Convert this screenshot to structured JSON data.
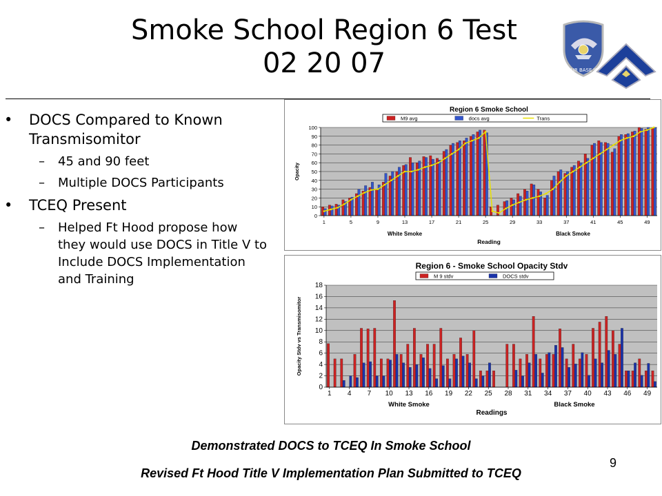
{
  "slide": {
    "title_line1": "Smoke School Region 6 Test",
    "title_line2": "02 20 07",
    "page_number": "9",
    "footer_line1": "Demonstrated DOCS to TCEQ In Smoke School",
    "footer_line2": "Revised Ft Hood Title V Implementation Plan Submitted to TCEQ",
    "logo_text": "75th AIR BASE WING"
  },
  "bullets": [
    {
      "level": 1,
      "marker": "•",
      "text_lines": [
        "DOCS Compared to Known",
        "Transmisomitor"
      ]
    },
    {
      "level": 2,
      "marker": "–",
      "text_lines": [
        "45 and 90 feet"
      ]
    },
    {
      "level": 2,
      "marker": "–",
      "text_lines": [
        "Multiple DOCS Participants"
      ]
    },
    {
      "level": 1,
      "marker": "•",
      "text_lines": [
        "TCEQ Present"
      ]
    },
    {
      "level": 2,
      "marker": "–",
      "text_lines": [
        "Helped Ft Hood propose how",
        "they would use DOCS in Title V to",
        "Include DOCS Implementation",
        "and Training"
      ]
    }
  ],
  "chart_data": [
    {
      "type": "bar",
      "title": "Region 6 Smoke School",
      "xlabel": "Reading",
      "ylabel": "Opacity",
      "group_labels": [
        "White Smoke",
        "Black Smoke"
      ],
      "ylim": [
        0,
        100
      ],
      "yticks": [
        0,
        10,
        20,
        30,
        40,
        50,
        60,
        70,
        80,
        90,
        100
      ],
      "xtick_labels": [
        "1",
        "5",
        "9",
        "13",
        "17",
        "21",
        "25",
        "29",
        "33",
        "37",
        "41",
        "45",
        "49"
      ],
      "grid": true,
      "legend_position": "top",
      "series": [
        {
          "name": "M9 avg",
          "kind": "bar",
          "color": "#cc2222",
          "values": [
            10,
            12,
            13,
            18,
            20,
            25,
            28,
            32,
            30,
            38,
            45,
            50,
            57,
            66,
            60,
            67,
            68,
            65,
            73,
            80,
            83,
            85,
            90,
            95,
            97,
            10,
            12,
            16,
            20,
            25,
            30,
            36,
            30,
            20,
            40,
            50,
            48,
            55,
            62,
            70,
            80,
            85,
            83,
            72,
            90,
            92,
            95,
            100,
            98,
            99
          ]
        },
        {
          "name": "docs avg",
          "kind": "bar",
          "color": "#3355cc",
          "values": [
            8,
            11,
            12,
            16,
            21,
            30,
            34,
            38,
            35,
            48,
            50,
            55,
            58,
            60,
            62,
            66,
            64,
            63,
            75,
            82,
            85,
            88,
            92,
            97,
            94,
            0,
            0,
            17,
            18,
            22,
            28,
            35,
            27,
            23,
            45,
            52,
            50,
            57,
            60,
            65,
            82,
            83,
            82,
            76,
            92,
            93,
            96,
            99,
            100,
            100
          ]
        },
        {
          "name": "Trans",
          "kind": "line",
          "color": "#e8e000",
          "values": [
            5,
            7,
            9,
            13,
            18,
            22,
            26,
            29,
            30,
            35,
            40,
            45,
            50,
            50,
            52,
            55,
            57,
            60,
            65,
            70,
            75,
            82,
            85,
            88,
            95,
            5,
            3,
            8,
            12,
            15,
            18,
            20,
            22,
            25,
            30,
            38,
            45,
            50,
            55,
            60,
            65,
            70,
            75,
            80,
            85,
            88,
            90,
            95,
            97,
            100
          ]
        }
      ]
    },
    {
      "type": "bar",
      "title": "Region 6 - Smoke School Opacity Stdv",
      "xlabel": "Readings",
      "ylabel": "Opacity Stdv vs Transmisomitor",
      "group_labels": [
        "White Smoke",
        "Black Smoke"
      ],
      "ylim": [
        0,
        18
      ],
      "yticks": [
        0,
        2,
        4,
        6,
        8,
        10,
        12,
        14,
        16,
        18
      ],
      "xtick_labels": [
        "1",
        "4",
        "7",
        "10",
        "13",
        "16",
        "19",
        "22",
        "25",
        "28",
        "31",
        "34",
        "37",
        "40",
        "43",
        "46",
        "49"
      ],
      "grid": true,
      "legend_position": "top",
      "series": [
        {
          "name": "M 9 stdv",
          "kind": "bar",
          "color": "#cc2222",
          "values": [
            7.7,
            5,
            5,
            0,
            5.8,
            10.4,
            10.3,
            10.4,
            5,
            5,
            15.3,
            5.8,
            7.6,
            10.4,
            5.8,
            7.6,
            7.6,
            10.4,
            5,
            5.8,
            8.7,
            5.8,
            10,
            2.9,
            2.9,
            2.9,
            0,
            7.6,
            7.6,
            5,
            5.8,
            12.5,
            5,
            5.8,
            5.8,
            10.3,
            5,
            7.6,
            5,
            5.8,
            10.4,
            11.5,
            12.5,
            10,
            7.6,
            2.9,
            2.9,
            5,
            2.9,
            2.9
          ]
        },
        {
          "name": "DOCS stdv",
          "kind": "bar",
          "color": "#1a33aa",
          "values": [
            0,
            0,
            1.2,
            2,
            1.7,
            4.3,
            4.5,
            2,
            2,
            4.8,
            5.8,
            4.3,
            3.5,
            4,
            5.2,
            3.3,
            1.5,
            3.8,
            1.5,
            5,
            5.5,
            4.3,
            1.5,
            2,
            4.3,
            0,
            0,
            0,
            3,
            2,
            4.3,
            5.8,
            2.5,
            6.1,
            7.4,
            7,
            3.5,
            4.1,
            6.1,
            2.1,
            5,
            4.3,
            6.5,
            5.8,
            10.4,
            2.9,
            4.3,
            2.1,
            4.2,
            1
          ]
        }
      ]
    }
  ]
}
